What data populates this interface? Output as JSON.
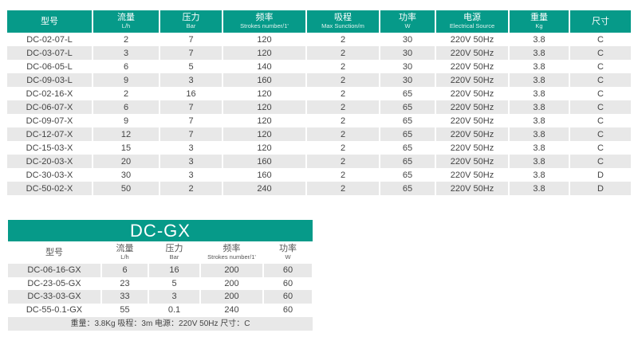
{
  "main_table": {
    "headers": [
      {
        "zh": "型号",
        "en": ""
      },
      {
        "zh": "流量",
        "en": "L/h"
      },
      {
        "zh": "压力",
        "en": "Bar"
      },
      {
        "zh": "频率",
        "en": "Strokes number/1'"
      },
      {
        "zh": "吸程",
        "en": "Max Sunction/m"
      },
      {
        "zh": "功率",
        "en": "W"
      },
      {
        "zh": "电源",
        "en": "Electrical Source"
      },
      {
        "zh": "重量",
        "en": "Kg"
      },
      {
        "zh": "尺寸",
        "en": ""
      }
    ],
    "rows": [
      [
        "DC-02-07-L",
        "2",
        "7",
        "120",
        "2",
        "30",
        "220V 50Hz",
        "3.8",
        "C"
      ],
      [
        "DC-03-07-L",
        "3",
        "7",
        "120",
        "2",
        "30",
        "220V 50Hz",
        "3.8",
        "C"
      ],
      [
        "DC-06-05-L",
        "6",
        "5",
        "140",
        "2",
        "30",
        "220V 50Hz",
        "3.8",
        "C"
      ],
      [
        "DC-09-03-L",
        "9",
        "3",
        "160",
        "2",
        "30",
        "220V 50Hz",
        "3.8",
        "C"
      ],
      [
        "DC-02-16-X",
        "2",
        "16",
        "120",
        "2",
        "65",
        "220V 50Hz",
        "3.8",
        "C"
      ],
      [
        "DC-06-07-X",
        "6",
        "7",
        "120",
        "2",
        "65",
        "220V 50Hz",
        "3.8",
        "C"
      ],
      [
        "DC-09-07-X",
        "9",
        "7",
        "120",
        "2",
        "65",
        "220V 50Hz",
        "3.8",
        "C"
      ],
      [
        "DC-12-07-X",
        "12",
        "7",
        "120",
        "2",
        "65",
        "220V 50Hz",
        "3.8",
        "C"
      ],
      [
        "DC-15-03-X",
        "15",
        "3",
        "120",
        "2",
        "65",
        "220V 50Hz",
        "3.8",
        "C"
      ],
      [
        "DC-20-03-X",
        "20",
        "3",
        "160",
        "2",
        "65",
        "220V 50Hz",
        "3.8",
        "C"
      ],
      [
        "DC-30-03-X",
        "30",
        "3",
        "160",
        "2",
        "65",
        "220V 50Hz",
        "3.8",
        "D"
      ],
      [
        "DC-50-02-X",
        "50",
        "2",
        "240",
        "2",
        "65",
        "220V 50Hz",
        "3.8",
        "D"
      ]
    ]
  },
  "gx_table": {
    "title": "DC-GX",
    "headers": [
      {
        "zh": "型号",
        "en": ""
      },
      {
        "zh": "流量",
        "en": "L/h"
      },
      {
        "zh": "压力",
        "en": "Bar"
      },
      {
        "zh": "频率",
        "en": "Strokes number/1'"
      },
      {
        "zh": "功率",
        "en": "W"
      }
    ],
    "rows": [
      [
        "DC-06-16-GX",
        "6",
        "16",
        "200",
        "60"
      ],
      [
        "DC-23-05-GX",
        "23",
        "5",
        "200",
        "60"
      ],
      [
        "DC-33-03-GX",
        "33",
        "3",
        "200",
        "60"
      ],
      [
        "DC-55-0.1-GX",
        "55",
        "0.1",
        "240",
        "60"
      ]
    ],
    "footer": "重量：3.8Kg 吸程：3m 电源：220V 50Hz 尺寸：C"
  },
  "colors": {
    "accent": "#069a89",
    "stripe": "#e8e8e8"
  }
}
